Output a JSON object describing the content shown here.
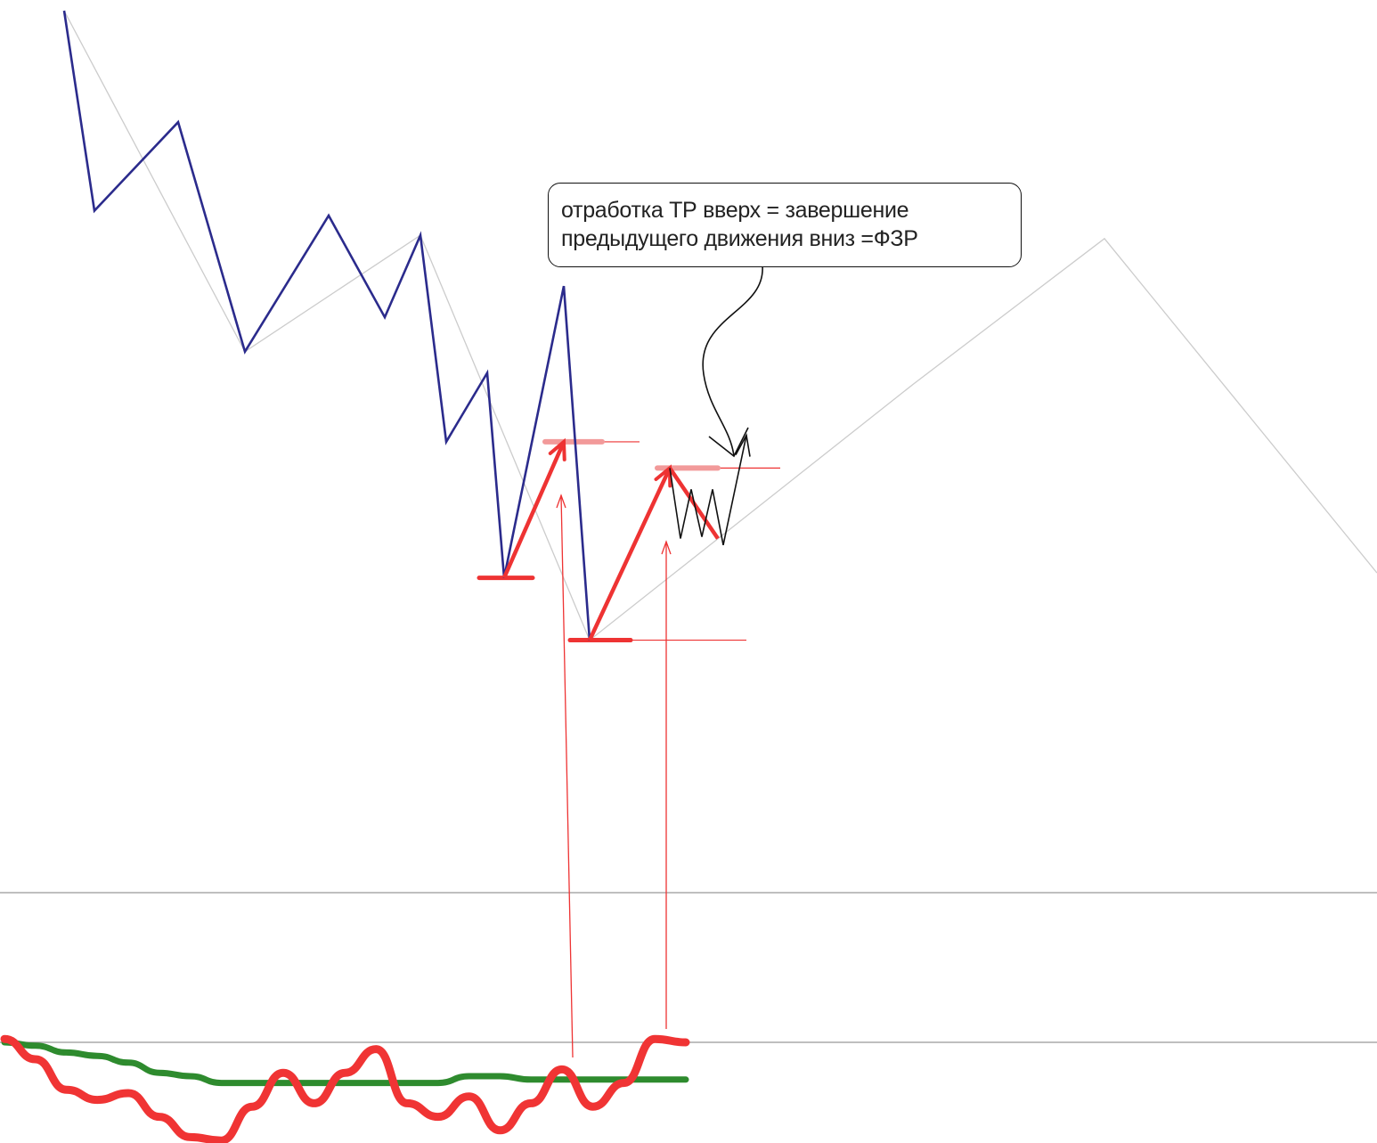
{
  "annotation": {
    "line1": "отработка ТР вверх = завершение",
    "line2": "предыдущего движения вниз =ФЗР"
  },
  "colors": {
    "price_line": "#2b2b8c",
    "zigzag_faint": "#cccccc",
    "annotation_red": "#ee3333",
    "level_pink": "#f29a9a",
    "oscillator_fast": "#f03434",
    "oscillator_slow": "#2e8b2e",
    "panel_divider": "#999999",
    "callout_arrow": "#111111"
  },
  "chart_data": [
    {
      "type": "line",
      "panel": "price",
      "series": [
        {
          "role": "price-polyline",
          "color": "#2b2b8c",
          "values": [
            0.0,
            -12.2,
            -6.8,
            -20.8,
            -12.5,
            -18.7,
            -13.7,
            -26.3,
            -22.1,
            -34.6,
            -16.8,
            -38.4
          ]
        },
        {
          "role": "zigzag-faint",
          "color": "#cccccc",
          "values": [
            0.0,
            -20.8,
            -13.7,
            -38.4,
            -22.8,
            -13.9,
            -34.3,
            -8.1
          ]
        },
        {
          "role": "red-arrows-up",
          "color": "#ee3333",
          "values": [
            -34.6,
            -26.3,
            -38.4,
            -27.9,
            -32.2
          ]
        },
        {
          "role": "zigzag-black-small",
          "color": "#111111",
          "values": [
            -27.9,
            -32.2,
            -29.2,
            -32.1,
            -29.2,
            -32.6,
            -25.9
          ]
        }
      ],
      "levels": [
        {
          "role": "red-low-1",
          "value": -34.6,
          "color": "#ee3333"
        },
        {
          "role": "red-low-2",
          "value": -38.4,
          "color": "#ee3333"
        },
        {
          "role": "pink-high-1",
          "value": -26.3,
          "color": "#f29a9a"
        },
        {
          "role": "pink-high-2",
          "value": -27.9,
          "color": "#f29a9a"
        }
      ],
      "grid": false,
      "legend": "none"
    },
    {
      "type": "line",
      "panel": "oscillator",
      "series": [
        {
          "role": "fast",
          "color": "#f03434",
          "values": [
            0.1,
            -0.5,
            -1.4,
            -1.7,
            -1.5,
            -2.2,
            -2.8,
            -2.9,
            -1.9,
            -0.9,
            -1.8,
            -0.9,
            -0.2,
            -1.8,
            -2.2,
            -1.6,
            -2.6,
            -1.8,
            -0.8,
            -1.9,
            -1.2,
            0.1,
            0.0
          ]
        },
        {
          "role": "slow",
          "color": "#2e8b2e",
          "values": [
            0.0,
            -0.1,
            -0.3,
            -0.4,
            -0.6,
            -0.9,
            -1.0,
            -1.2,
            -1.2,
            -1.2,
            -1.2,
            -1.2,
            -1.2,
            -1.2,
            -1.2,
            -1.0,
            -1.0,
            -1.1,
            -1.1,
            -1.1,
            -1.1,
            -1.1,
            -1.1
          ]
        }
      ],
      "zero_line": 0,
      "grid": false,
      "legend": "none"
    }
  ]
}
